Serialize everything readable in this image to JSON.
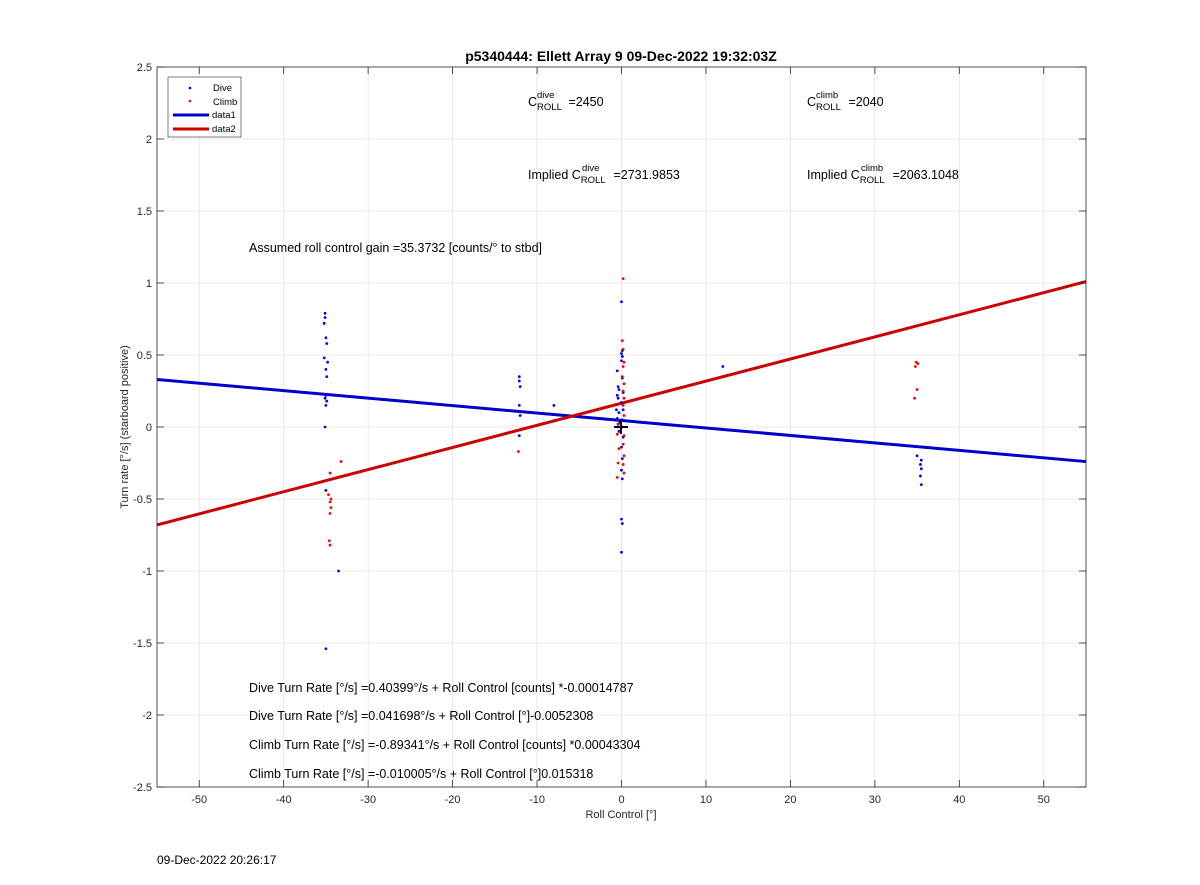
{
  "chart_data": {
    "type": "scatter",
    "title": "p5340444: Ellett Array 9 09-Dec-2022 19:32:03Z",
    "xlabel": "Roll Control [°]",
    "ylabel": "Turn rate [°/s] (starboard positive)",
    "xlim": [
      -55,
      55
    ],
    "ylim": [
      -2.5,
      2.5
    ],
    "xticks": [
      -50,
      -40,
      -30,
      -20,
      -10,
      0,
      10,
      20,
      30,
      40,
      50
    ],
    "yticks": [
      -2.5,
      -2,
      -1.5,
      -1,
      -0.5,
      0,
      0.5,
      1,
      1.5,
      2,
      2.5
    ],
    "grid": true,
    "legend_position": "top-left",
    "colors": {
      "dive": "#0000ff",
      "climb": "#ff0000",
      "data1": "#0000cc",
      "data2": "#cc0000"
    },
    "series": [
      {
        "name": "Dive",
        "kind": "points",
        "points": [
          [
            -35.1,
            0.79
          ],
          [
            -35.1,
            0.76
          ],
          [
            -35.2,
            0.72
          ],
          [
            -35.0,
            0.62
          ],
          [
            -34.9,
            0.58
          ],
          [
            -35.2,
            0.48
          ],
          [
            -34.8,
            0.45
          ],
          [
            -35.0,
            0.4
          ],
          [
            -34.9,
            0.35
          ],
          [
            -35.0,
            0.22
          ],
          [
            -35.1,
            0.2
          ],
          [
            -34.9,
            0.18
          ],
          [
            -35.0,
            0.15
          ],
          [
            -35.1,
            0.0
          ],
          [
            -35.0,
            -0.44
          ],
          [
            -35.0,
            -1.54
          ],
          [
            -33.5,
            -1.0
          ],
          [
            -12.1,
            0.35
          ],
          [
            -12.1,
            0.32
          ],
          [
            -12.0,
            0.28
          ],
          [
            -12.1,
            0.15
          ],
          [
            -12.0,
            0.08
          ],
          [
            -12.1,
            -0.06
          ],
          [
            -8.0,
            0.15
          ],
          [
            12.0,
            0.42
          ],
          [
            -0.5,
            0.39
          ],
          [
            -0.4,
            0.28
          ],
          [
            -0.3,
            0.26
          ],
          [
            -0.5,
            0.22
          ],
          [
            -0.4,
            0.2
          ],
          [
            -0.6,
            0.12
          ],
          [
            -0.3,
            0.1
          ],
          [
            -0.5,
            0.06
          ],
          [
            -0.2,
            0.03
          ],
          [
            -0.4,
            0.0
          ],
          [
            -0.3,
            -0.03
          ],
          [
            0.0,
            0.87
          ],
          [
            0.1,
            0.53
          ],
          [
            0.0,
            0.51
          ],
          [
            0.1,
            0.49
          ],
          [
            0.0,
            0.46
          ],
          [
            0.1,
            0.34
          ],
          [
            0.2,
            0.24
          ],
          [
            0.0,
            0.17
          ],
          [
            0.2,
            0.12
          ],
          [
            0.1,
            0.05
          ],
          [
            0.2,
            -0.07
          ],
          [
            0.0,
            -0.14
          ],
          [
            0.1,
            -0.22
          ],
          [
            0.0,
            -0.3
          ],
          [
            0.1,
            -0.36
          ],
          [
            0.0,
            -0.64
          ],
          [
            0.1,
            -0.67
          ],
          [
            0.0,
            -0.87
          ],
          [
            35.0,
            -0.2
          ],
          [
            35.5,
            -0.23
          ],
          [
            35.4,
            -0.26
          ],
          [
            35.5,
            -0.29
          ],
          [
            35.4,
            -0.34
          ],
          [
            35.5,
            -0.4
          ]
        ]
      },
      {
        "name": "Climb",
        "kind": "points",
        "points": [
          [
            -34.5,
            -0.32
          ],
          [
            -34.7,
            -0.47
          ],
          [
            -34.4,
            -0.5
          ],
          [
            -34.5,
            -0.52
          ],
          [
            -34.4,
            -0.56
          ],
          [
            -34.5,
            -0.6
          ],
          [
            -34.6,
            -0.79
          ],
          [
            -34.5,
            -0.82
          ],
          [
            -33.2,
            -0.24
          ],
          [
            -12.2,
            -0.17
          ],
          [
            -0.5,
            -0.35
          ],
          [
            -0.4,
            -0.25
          ],
          [
            -0.3,
            -0.15
          ],
          [
            -0.5,
            -0.05
          ],
          [
            -0.4,
            0.02
          ],
          [
            0.2,
            1.03
          ],
          [
            0.1,
            0.6
          ],
          [
            0.2,
            0.54
          ],
          [
            0.3,
            0.45
          ],
          [
            0.2,
            0.42
          ],
          [
            0.1,
            0.35
          ],
          [
            0.3,
            0.3
          ],
          [
            0.2,
            0.25
          ],
          [
            0.3,
            0.2
          ],
          [
            0.2,
            0.15
          ],
          [
            0.3,
            0.08
          ],
          [
            0.1,
            0.0
          ],
          [
            0.3,
            -0.06
          ],
          [
            0.2,
            -0.12
          ],
          [
            0.3,
            -0.2
          ],
          [
            0.2,
            -0.26
          ],
          [
            0.3,
            -0.32
          ],
          [
            34.9,
            0.45
          ],
          [
            35.1,
            0.44
          ],
          [
            34.8,
            0.42
          ],
          [
            35.0,
            0.26
          ],
          [
            34.7,
            0.2
          ]
        ]
      },
      {
        "name": "data1",
        "kind": "line",
        "points": [
          [
            -55,
            0.33
          ],
          [
            55,
            -0.24
          ]
        ]
      },
      {
        "name": "data2",
        "kind": "line",
        "points": [
          [
            -55,
            -0.68
          ],
          [
            55,
            1.01
          ]
        ]
      }
    ],
    "annotations": [
      {
        "parts": [
          [
            "C",
            ""
          ],
          [
            "ROLL",
            "dive"
          ],
          [
            " =2450",
            ""
          ]
        ]
      },
      {
        "parts": [
          [
            "C",
            ""
          ],
          [
            "ROLL",
            "climb"
          ],
          [
            " =2040",
            ""
          ]
        ]
      },
      {
        "parts": [
          [
            "Implied C",
            ""
          ],
          [
            "ROLL",
            "dive"
          ],
          [
            " =2731.9853",
            ""
          ]
        ]
      },
      {
        "parts": [
          [
            "Implied C",
            ""
          ],
          [
            "ROLL",
            "climb"
          ],
          [
            " =2063.1048",
            ""
          ]
        ]
      },
      {
        "text": "Assumed roll control gain =35.3732 [counts/° to stbd]"
      },
      {
        "text": "Dive Turn Rate [°/s] =0.40399°/s + Roll Control [counts] *-0.00014787"
      },
      {
        "text": "Dive Turn Rate [°/s] =0.041698°/s + Roll Control [°]-0.0052308"
      },
      {
        "text": "Climb Turn Rate [°/s] =-0.89341°/s + Roll Control [counts] *0.00043304"
      },
      {
        "text": "Climb Turn Rate [°/s] =-0.010005°/s + Roll Control [°]0.015318"
      }
    ]
  },
  "footer_timestamp": "09-Dec-2022 20:26:17"
}
